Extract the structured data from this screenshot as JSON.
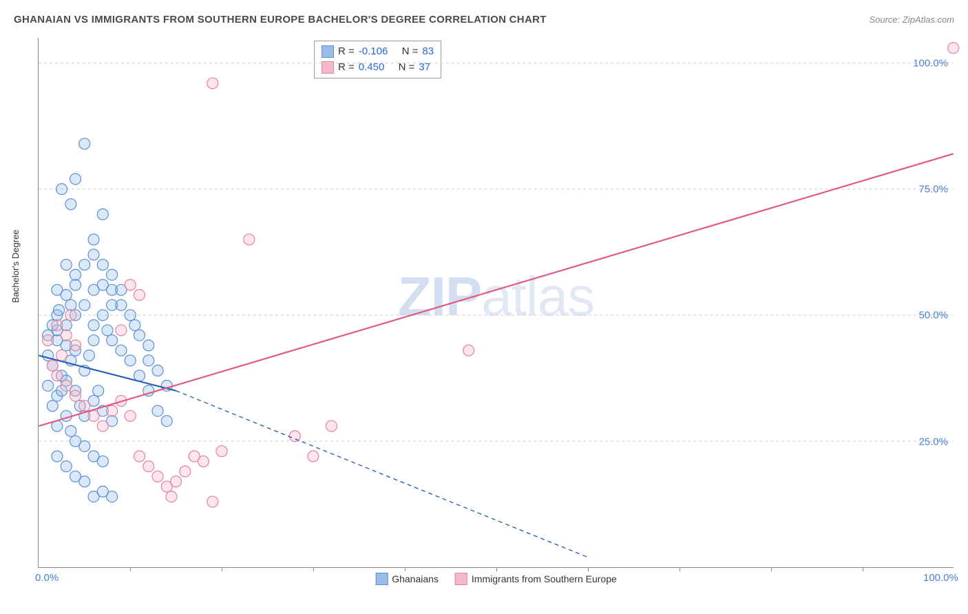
{
  "title": "GHANAIAN VS IMMIGRANTS FROM SOUTHERN EUROPE BACHELOR'S DEGREE CORRELATION CHART",
  "source": "Source: ZipAtlas.com",
  "ylabel": "Bachelor's Degree",
  "watermark": {
    "part1": "ZIP",
    "part2": "atlas"
  },
  "chart": {
    "type": "scatter-with-regression",
    "xlim": [
      0,
      100
    ],
    "ylim": [
      0,
      105
    ],
    "background_color": "#ffffff",
    "grid_color": "#cccccc",
    "axis_color": "#888888",
    "tick_label_color": "#4a7fd1",
    "tick_fontsize": 15,
    "label_fontsize": 13,
    "title_fontsize": 15,
    "yticks": [
      {
        "value": 25,
        "label": "25.0%"
      },
      {
        "value": 50,
        "label": "50.0%"
      },
      {
        "value": 75,
        "label": "75.0%"
      },
      {
        "value": 100,
        "label": "100.0%"
      }
    ],
    "xticks_major": [
      {
        "value": 0,
        "label": "0.0%"
      },
      {
        "value": 100,
        "label": "100.0%"
      }
    ],
    "xticks_minor": [
      10,
      20,
      30,
      40,
      50,
      60,
      70,
      80,
      90
    ],
    "marker_radius": 8,
    "marker_stroke_width": 1.2,
    "marker_fill_opacity": 0.35,
    "line_width": 2.2,
    "dash_pattern": "6,5"
  },
  "series_a": {
    "name": "Ghanaians",
    "color_fill": "#99bde8",
    "color_stroke": "#5a8fd6",
    "line_color": "#2b5fb5",
    "R": "-0.106",
    "N": "83",
    "trend": {
      "solid_from": [
        0,
        42
      ],
      "solid_to": [
        15,
        35
      ],
      "dash_to": [
        60,
        2
      ]
    },
    "points": [
      [
        1,
        42
      ],
      [
        2,
        45
      ],
      [
        1.5,
        40
      ],
      [
        2.5,
        38
      ],
      [
        3,
        44
      ],
      [
        2,
        47
      ],
      [
        3.5,
        41
      ],
      [
        4,
        43
      ],
      [
        1,
        36
      ],
      [
        2,
        34
      ],
      [
        3,
        37
      ],
      [
        4,
        35
      ],
      [
        5,
        39
      ],
      [
        5.5,
        42
      ],
      [
        6,
        45
      ],
      [
        6,
        48
      ],
      [
        7,
        50
      ],
      [
        7.5,
        47
      ],
      [
        8,
        52
      ],
      [
        8,
        55
      ],
      [
        4,
        50
      ],
      [
        5,
        52
      ],
      [
        3,
        48
      ],
      [
        2,
        50
      ],
      [
        4.5,
        32
      ],
      [
        5,
        30
      ],
      [
        6,
        33
      ],
      [
        6.5,
        35
      ],
      [
        7,
        31
      ],
      [
        8,
        29
      ],
      [
        3.5,
        27
      ],
      [
        4,
        25
      ],
      [
        5,
        24
      ],
      [
        6,
        22
      ],
      [
        7,
        21
      ],
      [
        2,
        28
      ],
      [
        3,
        30
      ],
      [
        1.5,
        32
      ],
      [
        2.5,
        35
      ],
      [
        1,
        46
      ],
      [
        1.5,
        48
      ],
      [
        2.2,
        51
      ],
      [
        2,
        55
      ],
      [
        3,
        54
      ],
      [
        4,
        56
      ],
      [
        3.5,
        52
      ],
      [
        6,
        55
      ],
      [
        7,
        56
      ],
      [
        8,
        58
      ],
      [
        9,
        55
      ],
      [
        9,
        52
      ],
      [
        10,
        50
      ],
      [
        10.5,
        48
      ],
      [
        11,
        46
      ],
      [
        12,
        44
      ],
      [
        12,
        41
      ],
      [
        13,
        39
      ],
      [
        14,
        36
      ],
      [
        13,
        31
      ],
      [
        14,
        29
      ],
      [
        8,
        45
      ],
      [
        9,
        43
      ],
      [
        10,
        41
      ],
      [
        11,
        38
      ],
      [
        12,
        35
      ],
      [
        6,
        14
      ],
      [
        7,
        15
      ],
      [
        8,
        14
      ],
      [
        4,
        18
      ],
      [
        5,
        17
      ],
      [
        2,
        22
      ],
      [
        3,
        20
      ],
      [
        4,
        77
      ],
      [
        5,
        84
      ],
      [
        6,
        65
      ],
      [
        7,
        70
      ],
      [
        2.5,
        75
      ],
      [
        3.5,
        72
      ],
      [
        3,
        60
      ],
      [
        4,
        58
      ],
      [
        5,
        60
      ],
      [
        6,
        62
      ],
      [
        7,
        60
      ]
    ]
  },
  "series_b": {
    "name": "Immigrants from Southern Europe",
    "color_fill": "#f5b8c8",
    "color_stroke": "#e5819e",
    "line_color": "#e15883",
    "R": "0.450",
    "N": "37",
    "trend": {
      "solid_from": [
        0,
        28
      ],
      "solid_to": [
        100,
        82
      ]
    },
    "points": [
      [
        1,
        45
      ],
      [
        2,
        48
      ],
      [
        2.5,
        42
      ],
      [
        3,
        46
      ],
      [
        3.5,
        50
      ],
      [
        4,
        44
      ],
      [
        1.5,
        40
      ],
      [
        2,
        38
      ],
      [
        3,
        36
      ],
      [
        4,
        34
      ],
      [
        5,
        32
      ],
      [
        6,
        30
      ],
      [
        7,
        28
      ],
      [
        8,
        31
      ],
      [
        9,
        33
      ],
      [
        10,
        30
      ],
      [
        11,
        22
      ],
      [
        12,
        20
      ],
      [
        13,
        18
      ],
      [
        14,
        16
      ],
      [
        14.5,
        14
      ],
      [
        15,
        17
      ],
      [
        16,
        19
      ],
      [
        17,
        22
      ],
      [
        18,
        21
      ],
      [
        19,
        13
      ],
      [
        20,
        23
      ],
      [
        10,
        56
      ],
      [
        11,
        54
      ],
      [
        19,
        96
      ],
      [
        23,
        65
      ],
      [
        28,
        26
      ],
      [
        30,
        22
      ],
      [
        32,
        28
      ],
      [
        47,
        43
      ],
      [
        100,
        103
      ],
      [
        9,
        47
      ]
    ]
  },
  "stats_box": {
    "rows": [
      {
        "swatch_series": "a",
        "label1": "R =",
        "val1": "-0.106",
        "label2": "N =",
        "val2": "83"
      },
      {
        "swatch_series": "b",
        "label1": "R =",
        "val1": "0.450",
        "label2": "N =",
        "val2": "37"
      }
    ]
  },
  "bottom_legend": {
    "items": [
      {
        "series": "a",
        "label": "Ghanaians"
      },
      {
        "series": "b",
        "label": "Immigrants from Southern Europe"
      }
    ]
  }
}
